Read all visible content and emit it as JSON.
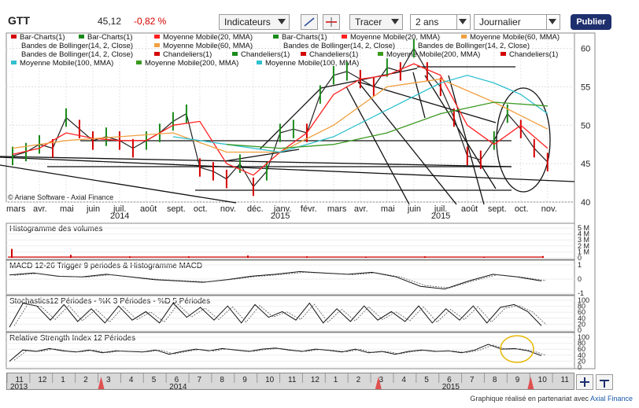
{
  "header": {
    "ticker": "GTT",
    "price": "45,12",
    "change": "-0,82 %",
    "indicators_label": "Indicateurs",
    "draw_label": "Tracer",
    "period_value": "2 ans",
    "interval_value": "Journalier",
    "publish_label": "Publier"
  },
  "legend": {
    "items": [
      {
        "label": "Bar-Charts(1)",
        "color": "#d40000"
      },
      {
        "label": "Bar-Charts(1)",
        "color": "#1a8a1a"
      },
      {
        "label": "Moyenne Mobile(20, MMA)",
        "color": "#ff2020"
      },
      {
        "label": "Bar-Charts(1)",
        "color": "#1a8a1a"
      },
      {
        "label": "Moyenne Mobile(20, MMA)",
        "color": "#ff2020"
      },
      {
        "label": "Moyenne Mobile(60, MMA)",
        "color": "#f0a040"
      },
      {
        "label": "Bandes de Bollinger(14, 2, Close)",
        "color": ""
      },
      {
        "label": "Moyenne Mobile(60, MMA)",
        "color": "#f0a040"
      },
      {
        "label": "Bandes de Bollinger(14, 2, Close)",
        "color": ""
      },
      {
        "label": "Bandes de Bollinger(14, 2, Close)",
        "color": ""
      },
      {
        "label": "Bandes de Bollinger(14, 2, Close)",
        "color": ""
      },
      {
        "label": "Chandeliers(1)",
        "color": "#d40000"
      },
      {
        "label": "Chandeliers(1)",
        "color": "#1a8a1a"
      },
      {
        "label": "Chandeliers(1)",
        "color": "#d40000"
      },
      {
        "label": "Moyenne Mobile(200, MMA)",
        "color": "#3a9a20"
      },
      {
        "label": "Chandeliers(1)",
        "color": "#d40000"
      },
      {
        "label": "Moyenne Mobile(100, MMA)",
        "color": "#30c0d0"
      },
      {
        "label": "Moyenne Mobile(200, MMA)",
        "color": "#3a9a20"
      },
      {
        "label": "Moyenne Mobile(100, MMA)",
        "color": "#30c0d0"
      }
    ]
  },
  "copyright": "© Ariane Software - Axial Finance",
  "credit": {
    "text": "Graphique réalisé en partenariat avec ",
    "link": "Axial Finance"
  },
  "chart_data": [
    {
      "type": "line",
      "title": "",
      "y_ticks": [
        40,
        45,
        50,
        55,
        60
      ],
      "ylim": [
        40,
        62
      ],
      "x_month_labels": [
        "mars",
        "avr.",
        "mai",
        "juin",
        "juil.",
        "août",
        "sept.",
        "oct.",
        "nov.",
        "déc.",
        "janv.",
        "févr.",
        "mars",
        "avr.",
        "mai",
        "juin",
        "juil.",
        "août",
        "sept.",
        "oct.",
        "nov."
      ],
      "x_year_labels": [
        {
          "label": "2014",
          "month_index": 4
        },
        {
          "label": "2015",
          "month_index": 10
        },
        {
          "label": "2015",
          "month_index": 16
        }
      ],
      "series": [
        {
          "name": "Bar-Charts(1)",
          "color": "#222222",
          "x_month": [
            0,
            0.5,
            1,
            1.5,
            2,
            2.5,
            3,
            3.5,
            4,
            4.5,
            5,
            5.5,
            6,
            6.5,
            7,
            7.5,
            8,
            8.5,
            9,
            9.5,
            10,
            10.5,
            11,
            11.5,
            12,
            12.5,
            13,
            13.5,
            14,
            14.5,
            15,
            15.5,
            16,
            16.5,
            17,
            17.5,
            18,
            18.5,
            19,
            19.5,
            20
          ],
          "values": [
            46,
            46.5,
            47.5,
            47,
            51,
            49.5,
            48,
            48.5,
            48,
            47,
            48,
            49,
            50.5,
            51.5,
            44.5,
            44,
            43,
            45,
            42,
            44,
            49,
            49.5,
            49,
            54,
            56.5,
            57,
            56,
            55,
            57.5,
            57,
            60,
            57,
            55,
            51,
            46,
            45.5,
            48,
            51.5,
            49.5,
            47,
            45.2
          ]
        },
        {
          "name": "Moyenne Mobile(20, MMA)",
          "color": "#ff2020",
          "x_month": [
            0,
            1,
            2,
            3,
            4,
            5,
            6,
            7,
            8,
            9,
            10,
            11,
            12,
            13,
            14,
            15,
            16,
            17,
            18,
            19,
            20
          ],
          "values": [
            46.2,
            47,
            49,
            48.3,
            48,
            48,
            50,
            50.5,
            45,
            43.5,
            46.5,
            49,
            54,
            56,
            56.5,
            58,
            56.5,
            50,
            47.5,
            50,
            47
          ]
        },
        {
          "name": "Moyenne Mobile(60, MMA)",
          "color": "#f0a040",
          "x_month": [
            0,
            2,
            4,
            6,
            8,
            10,
            12,
            14,
            16,
            18,
            20
          ],
          "values": [
            47,
            48,
            48.5,
            49,
            46.5,
            46.5,
            50,
            55,
            56,
            53,
            49.5
          ]
        },
        {
          "name": "Moyenne Mobile(100, MMA)",
          "color": "#30c0d0",
          "x_month": [
            6,
            8,
            10,
            12,
            14,
            16,
            17,
            18,
            19,
            20
          ],
          "values": [
            48.5,
            47.5,
            46.5,
            48.5,
            52,
            55.5,
            56.5,
            55.5,
            54,
            51.5
          ]
        },
        {
          "name": "Moyenne Mobile(200, MMA)",
          "color": "#3a9a20",
          "x_month": [
            8,
            10,
            12,
            14,
            16,
            18,
            20
          ],
          "values": [
            47.5,
            47,
            47.5,
            49,
            51.5,
            53,
            52.5
          ]
        }
      ]
    },
    {
      "type": "bar",
      "title": "Histogramme des volumes",
      "y_ticks": [
        "5 M",
        "4 M",
        "3 M",
        "2 M",
        "1 M",
        "0"
      ],
      "values": [
        0.3,
        0.1,
        0.05,
        0.05,
        0.08,
        0.05,
        0.04,
        0.05,
        0.04,
        0.06
      ]
    },
    {
      "type": "line",
      "title": "MACD 12-26   Trigger 9 periodes & Histogramme MACD",
      "y_ticks": [
        "1",
        "0",
        "-1"
      ],
      "ylim": [
        -2,
        2
      ],
      "series": [
        {
          "name": "MACD",
          "values": [
            0.5,
            0.8,
            0.3,
            0.2,
            0.6,
            0.2,
            -0.2,
            -0.4,
            -0.6,
            -0.2,
            0.3,
            0.6,
            1.0,
            0.8,
            0.6,
            0.9,
            0.2,
            -1.2,
            -1.6,
            -0.4,
            0.6,
            0.2,
            -0.4
          ]
        }
      ]
    },
    {
      "type": "line",
      "title": "Stochastics12 Périodes  -  %K 3 Périodes  -  %D 5 Périodes",
      "y_ticks": [
        "100",
        "80",
        "60",
        "40",
        "20",
        "0"
      ],
      "ylim": [
        0,
        100
      ],
      "series": [
        {
          "name": "%K",
          "values": [
            5,
            90,
            80,
            30,
            85,
            25,
            70,
            20,
            80,
            30,
            60,
            20,
            90,
            40,
            75,
            30,
            80,
            20,
            85,
            40,
            60,
            30,
            90,
            20,
            70,
            25,
            80,
            30,
            60,
            25,
            80,
            20,
            70,
            30,
            80,
            20,
            75,
            85,
            60,
            10
          ]
        }
      ]
    },
    {
      "type": "line",
      "title": "Relative Strength Index 12 Périodes",
      "y_ticks": [
        "100",
        "80",
        "60",
        "40",
        "20",
        "0"
      ],
      "ylim": [
        0,
        100
      ],
      "series": [
        {
          "name": "RSI",
          "values": [
            15,
            55,
            50,
            60,
            52,
            48,
            55,
            45,
            52,
            50,
            48,
            55,
            40,
            50,
            58,
            52,
            60,
            55,
            50,
            58,
            62,
            55,
            50,
            58,
            54,
            48,
            58,
            45,
            50,
            40,
            50,
            55,
            50,
            52,
            45,
            55,
            75,
            58,
            60,
            52,
            35
          ]
        }
      ]
    }
  ],
  "navigator": {
    "months": [
      "11",
      "12",
      "1",
      "2",
      "3",
      "4",
      "5",
      "6",
      "7",
      "8",
      "9",
      "10",
      "11",
      "12",
      "1",
      "2",
      "3",
      "4",
      "5",
      "6",
      "7",
      "8",
      "9",
      "10",
      "11"
    ],
    "years": [
      {
        "label": "2013",
        "index": 0
      },
      {
        "label": "2014",
        "index": 7
      },
      {
        "label": "2015",
        "index": 19
      }
    ]
  }
}
